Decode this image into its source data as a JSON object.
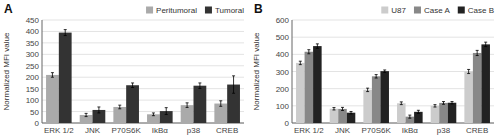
{
  "chart_data": [
    {
      "type": "bar",
      "title": "A",
      "ylabel": "Normalized MFI value",
      "categories": [
        "ERK 1/2",
        "JNK",
        "P70S6K",
        "IkBα",
        "p38",
        "CREB"
      ],
      "series": [
        {
          "name": "Peritumoral",
          "color": "#aaaaaa",
          "values": [
            210,
            35,
            70,
            38,
            78,
            85
          ],
          "errors": [
            10,
            7,
            8,
            6,
            10,
            12
          ]
        },
        {
          "name": "Tumoral",
          "color": "#333333",
          "values": [
            395,
            57,
            165,
            52,
            163,
            168
          ],
          "errors": [
            13,
            13,
            10,
            15,
            12,
            38
          ]
        }
      ],
      "ylim": [
        0,
        450
      ],
      "yticks": [
        0,
        50,
        100,
        150,
        200,
        250,
        300,
        350,
        400,
        450
      ],
      "grid": true,
      "legend": "upper right"
    },
    {
      "type": "bar",
      "title": "B",
      "ylabel": "Normalized MFI value",
      "categories": [
        "ERK 1/2",
        "JNK",
        "P70S6K",
        "IkBα",
        "p38",
        "CREB"
      ],
      "series": [
        {
          "name": "U87",
          "color": "#cccccc",
          "values": [
            350,
            83,
            193,
            115,
            100,
            300
          ],
          "errors": [
            10,
            7,
            10,
            8,
            7,
            12
          ]
        },
        {
          "name": "Case A",
          "color": "#888888",
          "values": [
            415,
            82,
            272,
            37,
            117,
            408
          ],
          "errors": [
            12,
            9,
            10,
            9,
            8,
            15
          ]
        },
        {
          "name": "Case B",
          "color": "#222222",
          "values": [
            448,
            60,
            302,
            65,
            118,
            458
          ],
          "errors": [
            13,
            7,
            7,
            9,
            7,
            13
          ]
        }
      ],
      "ylim": [
        0,
        600
      ],
      "yticks": [
        0,
        100,
        200,
        300,
        400,
        500,
        600
      ],
      "grid": true,
      "legend": "upper right"
    }
  ]
}
